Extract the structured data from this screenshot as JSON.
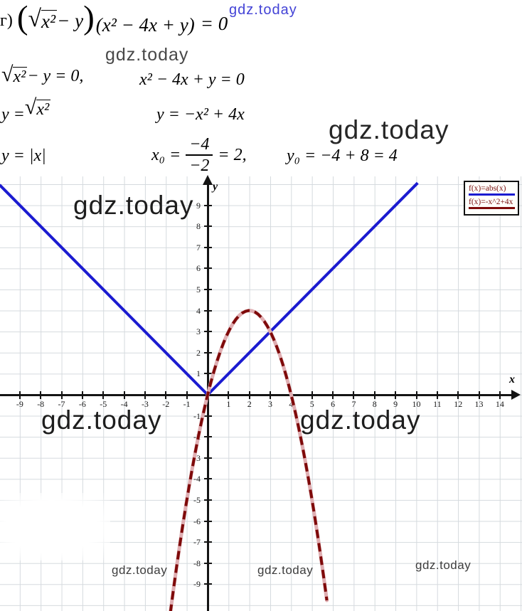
{
  "watermarks": {
    "top": "gdz.today",
    "eq_small": "gdz.today",
    "eq_big": "gdz.today",
    "graph_top_left": "gdz.today",
    "axis_left": "gdz.today",
    "axis_right": "gdz.today",
    "bottom_left": "gdz.today",
    "bottom_mid": "gdz.today",
    "bottom_right": "gdz.today"
  },
  "equations": {
    "item_label": "г)",
    "line1": {
      "open_big": "(",
      "sqrt_sign": "√",
      "radicand": "x²",
      "after_sqrt": " − y",
      "close_big": ")",
      "factor2": "(x² − 4x + y)",
      "rhs": "= 0"
    },
    "line2": {
      "sqrt_sign": "√",
      "radicand": "x²",
      "rest": " − y = 0,",
      "second": "x² − 4x + y = 0"
    },
    "line3": {
      "first_pre": "y = ",
      "sqrt_sign": "√",
      "radicand": "x²",
      "second": "y = −x² + 4x"
    },
    "line4": {
      "first": "y = |x|",
      "x0_pre": "x₀ =",
      "frac_num": "−4",
      "frac_den": "−2",
      "x0_post": "= 2,",
      "y0": "y₀ = −4 + 8 = 4"
    }
  },
  "chart_data": {
    "type": "line",
    "title": "",
    "x_axis_label": "x",
    "y_axis_label": "y",
    "xlim": [
      -10,
      15.1
    ],
    "ylim": [
      -10.3,
      10.3
    ],
    "grid": true,
    "legend_position": "top-right",
    "x_ticks": [
      -9,
      -8,
      -7,
      -6,
      -5,
      -4,
      -3,
      -2,
      -1,
      1,
      2,
      3,
      4,
      5,
      6,
      7,
      8,
      9,
      10,
      11,
      12,
      13,
      14
    ],
    "y_ticks": [
      9,
      8,
      7,
      6,
      5,
      4,
      3,
      2,
      1,
      -1,
      -2,
      -3,
      -4,
      -5,
      -6,
      -7,
      -8,
      -9
    ],
    "series": [
      {
        "name": "f(x)=abs(x)",
        "color": "#1b1bd0",
        "function": "abs(x)",
        "domain": [
          -9.97,
          10.06
        ],
        "key_points": [
          [
            -9.97,
            9.97
          ],
          [
            0,
            0
          ],
          [
            10.06,
            10.06
          ]
        ]
      },
      {
        "name": "f(x)=-x^2+4x",
        "color": "#7e0a0a",
        "function": "-x^2+4x",
        "coeffs": {
          "a": -1,
          "b": 4,
          "c": 0
        },
        "domain": [
          -1.79,
          5.79
        ],
        "vertex": [
          2,
          4
        ],
        "x_intercepts": [
          0,
          4
        ]
      }
    ],
    "intersections": [
      [
        0,
        0
      ],
      [
        3,
        3
      ]
    ]
  }
}
